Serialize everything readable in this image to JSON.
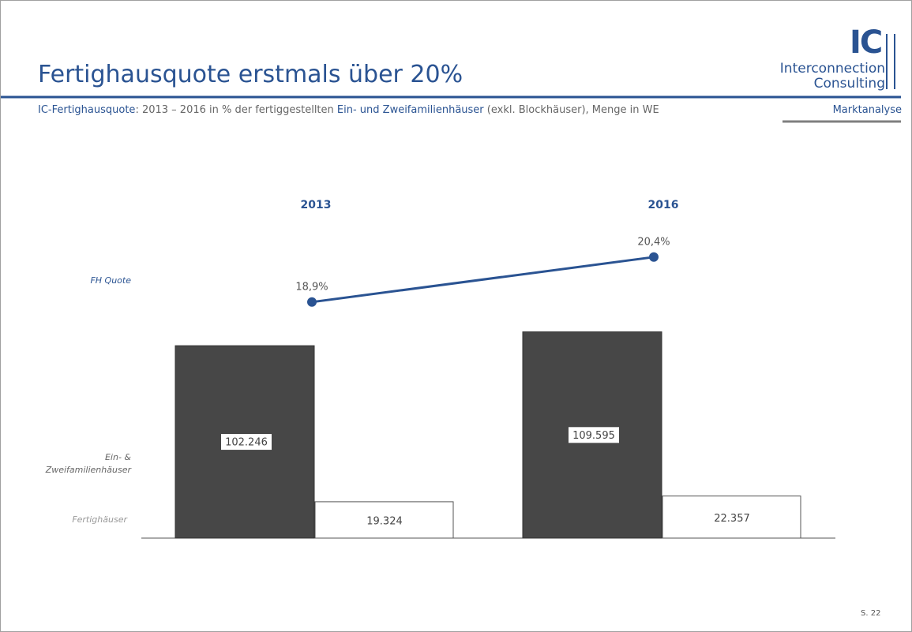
{
  "header": {
    "title": "Fertighausquote erstmals über 20%",
    "subtitle_parts": [
      "IC-Fertighausquote",
      ": 2013  – 2016  in % der fertiggestellten ",
      "Ein- und Zweifamilienhäuser",
      " (exkl. Blockhäuser), Menge in WE"
    ],
    "section": "Marktanalyse",
    "logo": {
      "mark": "IC",
      "line1": "Interconnection",
      "line2": "Consulting"
    }
  },
  "chart_data": {
    "type": "bar_line",
    "categories": [
      "2013",
      "2016"
    ],
    "series": [
      {
        "name": "Ein- & Zweifamilienhäuser",
        "color": "#474747",
        "values": [
          102246,
          109595
        ],
        "value_labels": [
          "102.246",
          "109.595"
        ]
      },
      {
        "name": "Fertighäuser",
        "color": "#ffffff",
        "values": [
          19324,
          22357
        ],
        "value_labels": [
          "19.324",
          "22.357"
        ]
      }
    ],
    "line": {
      "name": "FH Quote",
      "color": "#2a5392",
      "values": [
        18.9,
        20.4
      ],
      "value_labels": [
        "18,9%",
        "20,4%"
      ]
    }
  },
  "footer": {
    "page": "S. 22"
  }
}
